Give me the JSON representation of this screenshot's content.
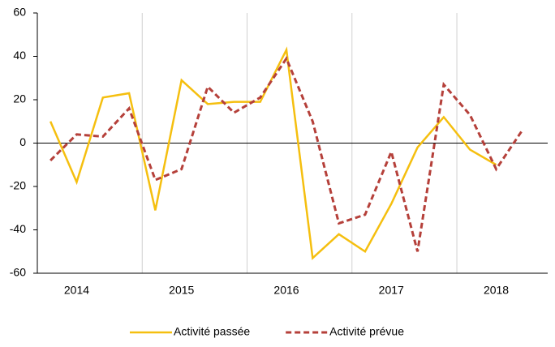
{
  "chart_data": {
    "type": "line",
    "categories": [
      null,
      "2014",
      null,
      null,
      null,
      "2015",
      null,
      null,
      null,
      "2016",
      null,
      null,
      null,
      "2017",
      null,
      null,
      null,
      "2018",
      null
    ],
    "series": [
      {
        "name": "Activité passée",
        "color": "#f5bf0f",
        "dash": false,
        "values": [
          10,
          -18,
          21,
          23,
          -31,
          29,
          18,
          19,
          19,
          43,
          -53,
          -42,
          -50,
          -28,
          -2,
          12,
          -3,
          -10,
          null
        ]
      },
      {
        "name": "Activité prévue",
        "color": "#b5403a",
        "dash": true,
        "values": [
          -8,
          4,
          3,
          16,
          -17,
          -12,
          26,
          14,
          21,
          39,
          10,
          -37,
          -33,
          -4,
          -50,
          27,
          13,
          -12,
          6
        ]
      }
    ],
    "ylim": [
      -60,
      60
    ],
    "yticks": [
      -60,
      -40,
      -20,
      0,
      20,
      40,
      60
    ],
    "legend": "bottom"
  }
}
